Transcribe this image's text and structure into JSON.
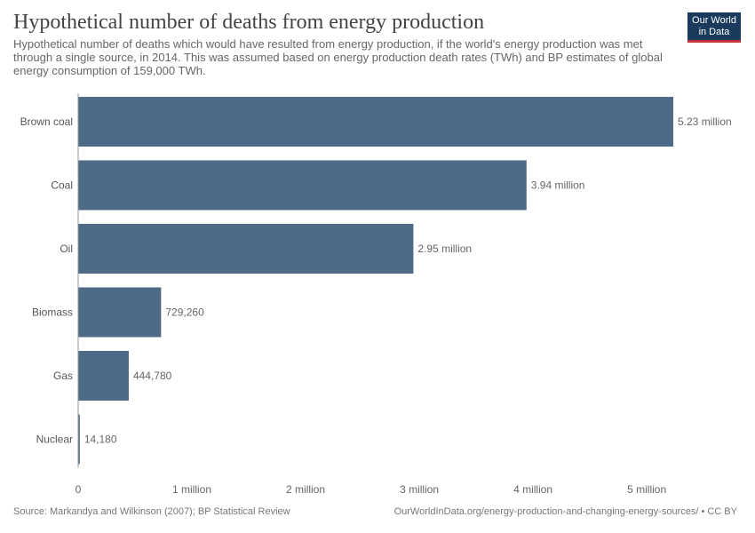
{
  "header": {
    "title": "Hypothetical number of deaths from energy production",
    "subtitle": "Hypothetical number of deaths which would have resulted from energy production, if the world's energy production was met through a single source, in 2014. This was assumed based on energy production death rates (TWh) and BP estimates of global energy consumption of 159,000 TWh."
  },
  "logo": {
    "line1": "Our World",
    "line2": "in Data"
  },
  "chart_data": {
    "type": "bar",
    "orientation": "horizontal",
    "categories": [
      "Brown coal",
      "Coal",
      "Oil",
      "Biomass",
      "Gas",
      "Nuclear"
    ],
    "values": [
      5233250,
      3942790,
      2947860,
      729260,
      444780,
      14180
    ],
    "value_labels": [
      "5.23 million",
      "3.94 million",
      "2.95 million",
      "729,260",
      "444,780",
      "14,180"
    ],
    "xticks": [
      0,
      1000000,
      2000000,
      3000000,
      4000000,
      5000000
    ],
    "xtick_labels": [
      "0",
      "1 million",
      "2 million",
      "3 million",
      "4 million",
      "5 million"
    ],
    "xlim": [
      0,
      5233250
    ],
    "grid": false,
    "bar_color": "#4d6b87"
  },
  "footer": {
    "source": "Source: Markandya and Wilkinson (2007); BP Statistical Review",
    "note": "OurWorldInData.org/energy-production-and-changing-energy-sources/ • CC BY"
  }
}
